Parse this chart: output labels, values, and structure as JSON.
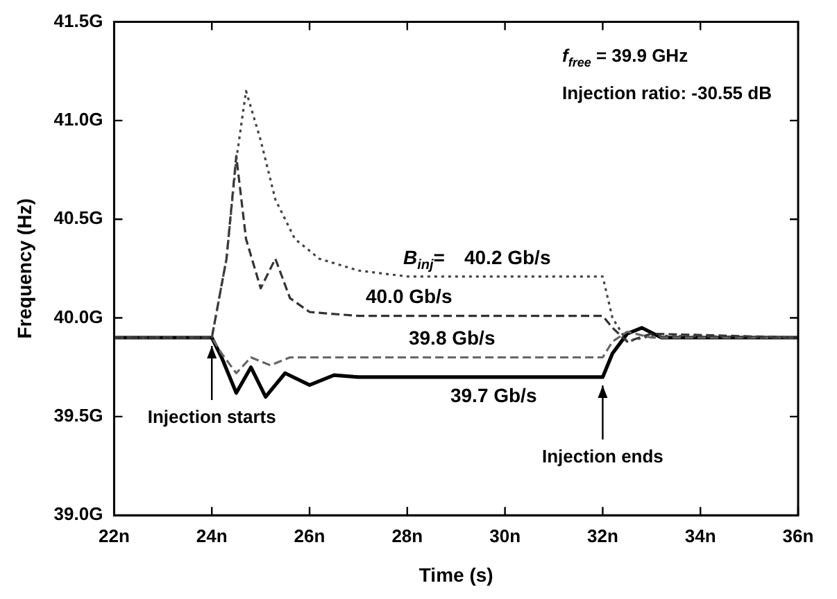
{
  "chart_data": {
    "type": "line",
    "xlabel": "Time (s)",
    "ylabel": "Frequency (Hz)",
    "xlim": [
      22,
      36
    ],
    "xticks": [
      {
        "value": 22,
        "label": "22n"
      },
      {
        "value": 24,
        "label": "24n"
      },
      {
        "value": 26,
        "label": "26n"
      },
      {
        "value": 28,
        "label": "28n"
      },
      {
        "value": 30,
        "label": "30n"
      },
      {
        "value": 32,
        "label": "32n"
      },
      {
        "value": 34,
        "label": "34n"
      },
      {
        "value": 36,
        "label": "36n"
      }
    ],
    "ylim": [
      39.0,
      41.5
    ],
    "yticks": [
      {
        "value": 39.0,
        "label": "39.0G"
      },
      {
        "value": 39.5,
        "label": "39.5G"
      },
      {
        "value": 40.0,
        "label": "40.0G"
      },
      {
        "value": 40.5,
        "label": "40.5G"
      },
      {
        "value": 41.0,
        "label": "41.0G"
      },
      {
        "value": 41.5,
        "label": "41.5G"
      }
    ],
    "grid": false,
    "legend": false,
    "marker": "none",
    "series": [
      {
        "name": "40.2 Gb/s",
        "color": "#444444",
        "line_style": "dotted",
        "x": [
          22,
          24,
          24.3,
          24.5,
          24.7,
          25,
          25.3,
          25.7,
          26.2,
          27,
          28,
          32,
          32.2,
          32.5,
          33,
          36
        ],
        "values": [
          39.9,
          39.9,
          40.3,
          40.8,
          41.15,
          40.9,
          40.6,
          40.4,
          40.3,
          40.24,
          40.21,
          40.21,
          40.0,
          39.88,
          39.91,
          39.9
        ]
      },
      {
        "name": "40.0 Gb/s",
        "color": "#333333",
        "line_style": "dashed",
        "x": [
          22,
          24,
          24.3,
          24.5,
          24.7,
          25,
          25.3,
          25.6,
          26,
          27,
          32,
          32.2,
          32.5,
          33,
          36
        ],
        "values": [
          39.9,
          39.9,
          40.3,
          40.82,
          40.4,
          40.15,
          40.3,
          40.1,
          40.03,
          40.01,
          40.01,
          39.95,
          39.88,
          39.92,
          39.9
        ]
      },
      {
        "name": "39.8 Gb/s",
        "color": "#666666",
        "line_style": "dashed",
        "x": [
          22,
          24,
          24.2,
          24.5,
          24.8,
          25.2,
          25.6,
          26,
          32,
          32.2,
          32.5,
          33,
          36
        ],
        "values": [
          39.9,
          39.9,
          39.82,
          39.72,
          39.8,
          39.76,
          39.8,
          39.8,
          39.8,
          39.88,
          39.93,
          39.9,
          39.9
        ]
      },
      {
        "name": "39.7 Gb/s",
        "color": "#000000",
        "line_style": "solid",
        "x": [
          22,
          24,
          24.2,
          24.5,
          24.8,
          25.1,
          25.5,
          26,
          26.5,
          27,
          32,
          32.2,
          32.5,
          32.8,
          33.2,
          36
        ],
        "values": [
          39.9,
          39.9,
          39.8,
          39.62,
          39.75,
          39.6,
          39.72,
          39.66,
          39.71,
          39.7,
          39.7,
          39.82,
          39.92,
          39.95,
          39.9,
          39.9
        ]
      }
    ],
    "annotations": [
      "f$_{free}$ = 39.9 GHz",
      "Injection ratio: -30.55 dB",
      "B$_{inj}$=",
      {
        "text": "Injection starts",
        "x": 24,
        "y": 39.9
      },
      {
        "text": "Injection ends",
        "x": 32,
        "y": 39.7
      }
    ]
  }
}
